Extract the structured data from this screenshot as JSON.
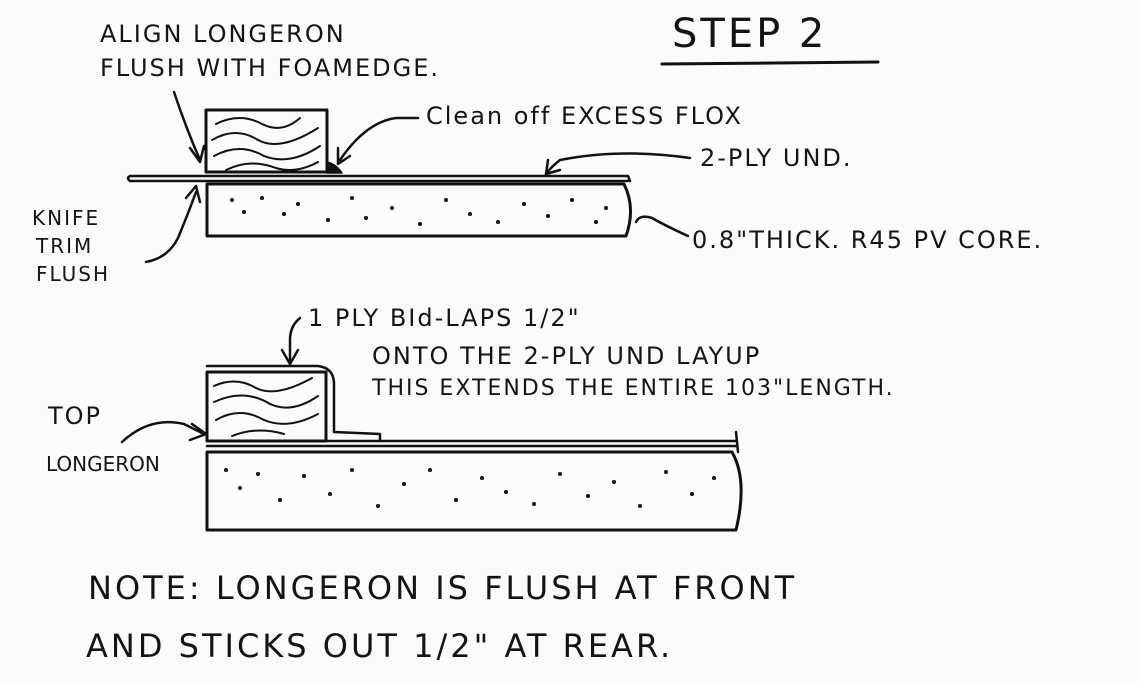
{
  "title": "STEP 2",
  "top_diagram": {
    "align_label_line1": "ALIGN LONGERON",
    "align_label_line2": "FLUSH WITH FOAMEDGE.",
    "flox_label": "Clean off EXCESS FLOX",
    "und_label": "2-PLY UND.",
    "core_label": "0.8\"THICK. R45 PV CORE.",
    "knife_line1": "KNIFE",
    "knife_line2": "TRIM",
    "knife_line3": "FLUSH"
  },
  "bottom_diagram": {
    "bid_line1": "1 PLY BId-LAPS 1/2\"",
    "bid_line2": "ONTO THE 2-PLY UND LAYUP",
    "bid_line3": "THIS EXTENDS THE ENTIRE 103\"LENGTH.",
    "top_label": "TOP",
    "longeron_label": "LONGERON"
  },
  "note": {
    "line1": "NOTE: LONGERON IS FLUSH AT FRONT",
    "line2": "AND STICKS OUT 1/2\" AT REAR."
  }
}
